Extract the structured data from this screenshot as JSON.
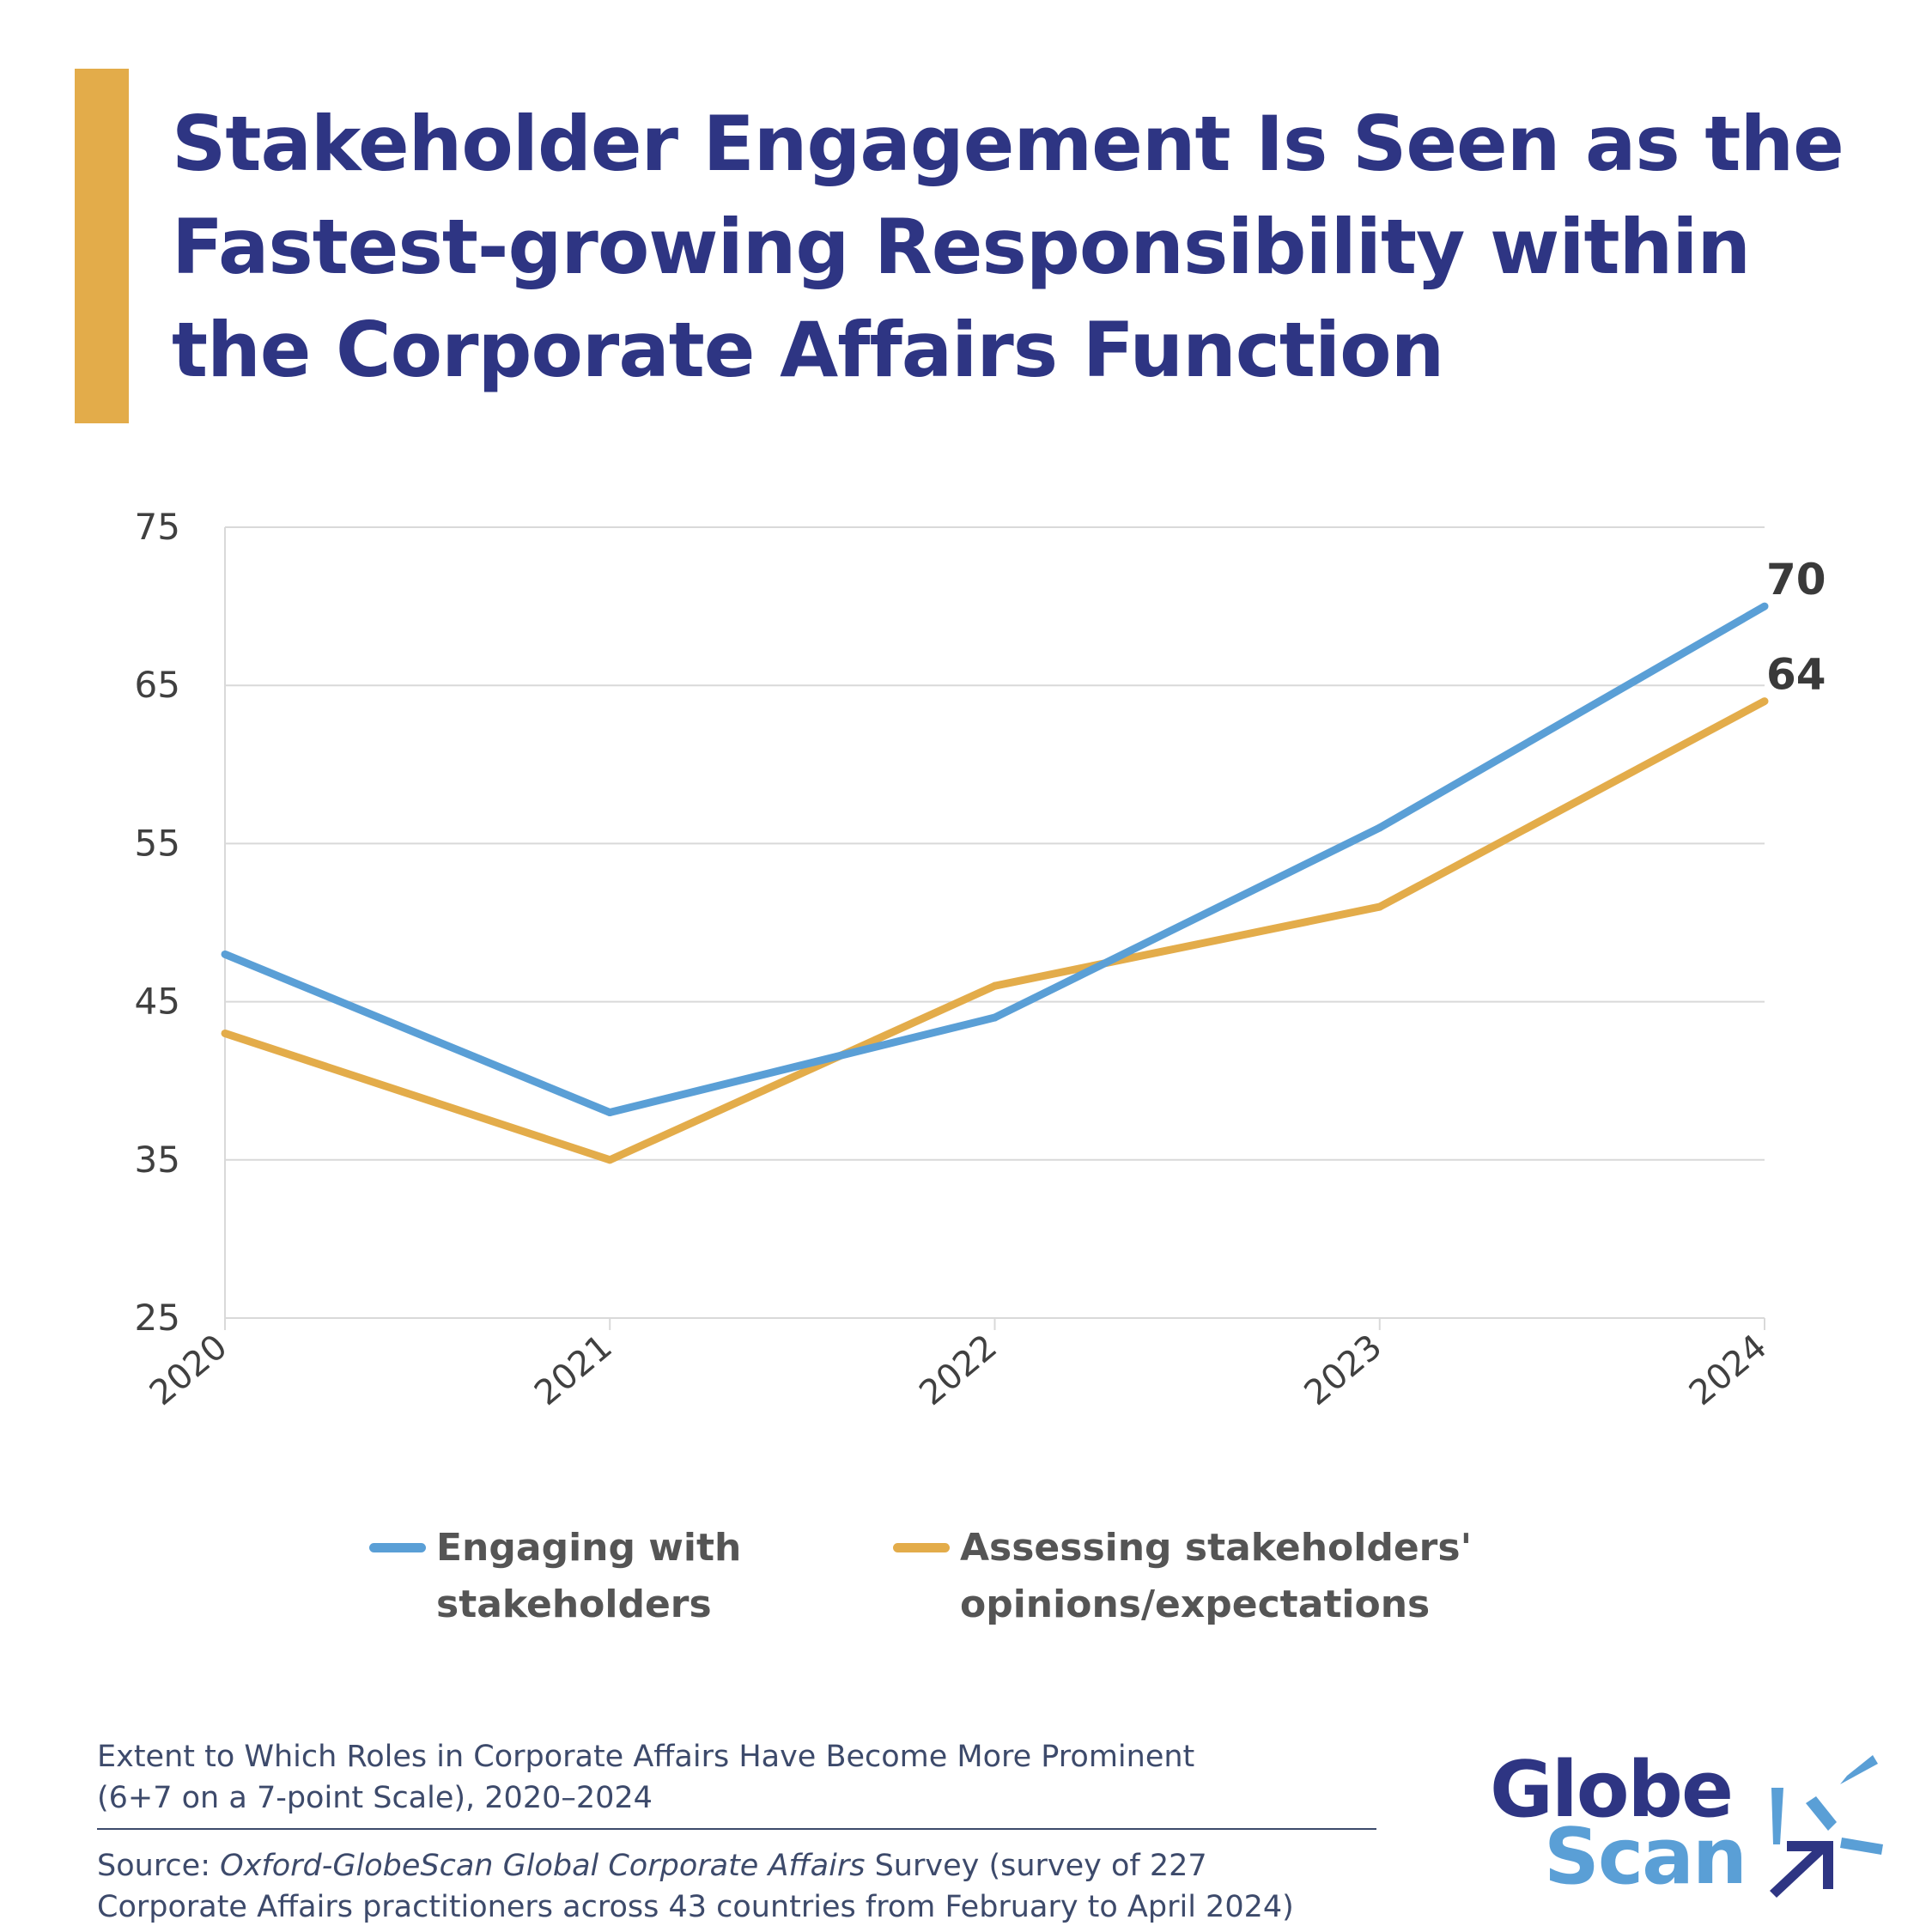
{
  "title": "Stakeholder Engagement Is Seen as the Fastest-growing Responsibility within the Corporate Affairs Function",
  "chart_data": {
    "type": "line",
    "x": [
      "2020",
      "2021",
      "2022",
      "2023",
      "2024"
    ],
    "series": [
      {
        "name": "Engaging with stakeholders",
        "values": [
          48,
          38,
          44,
          56,
          70
        ],
        "color": "#5A9FD6"
      },
      {
        "name": "Assessing stakeholders' opinions/expectations",
        "values": [
          43,
          35,
          46,
          51,
          64
        ],
        "color": "#E3AC4A"
      }
    ],
    "end_labels": [
      "70",
      "64"
    ],
    "ylim": [
      25,
      75
    ],
    "yticks": [
      25,
      35,
      45,
      55,
      65,
      75
    ],
    "grid": true,
    "legend_position": "bottom"
  },
  "legend": {
    "item1": {
      "line1": "Engaging with",
      "line2": "stakeholders"
    },
    "item2": {
      "line1": "Assessing stakeholders'",
      "line2": "opinions/expectations"
    }
  },
  "footer": {
    "caption_line1": "Extent to Which Roles in Corporate Affairs Have Become More Prominent",
    "caption_line2": "(6+7 on a 7-point Scale), 2020–2024",
    "source_prefix": "Source: ",
    "source_title": "Oxford-GlobeScan Global Corporate Affairs",
    "source_rest_line1": " Survey (survey of 227",
    "source_line2": "Corporate Affairs practitioners across 43 countries from February to April 2024)"
  },
  "logo": {
    "word1": "Globe",
    "word2": "Scan"
  },
  "colors": {
    "title": "#2E3583",
    "accent": "#E3AC4A",
    "blue": "#5A9FD6",
    "text": "#3d4a6b"
  }
}
